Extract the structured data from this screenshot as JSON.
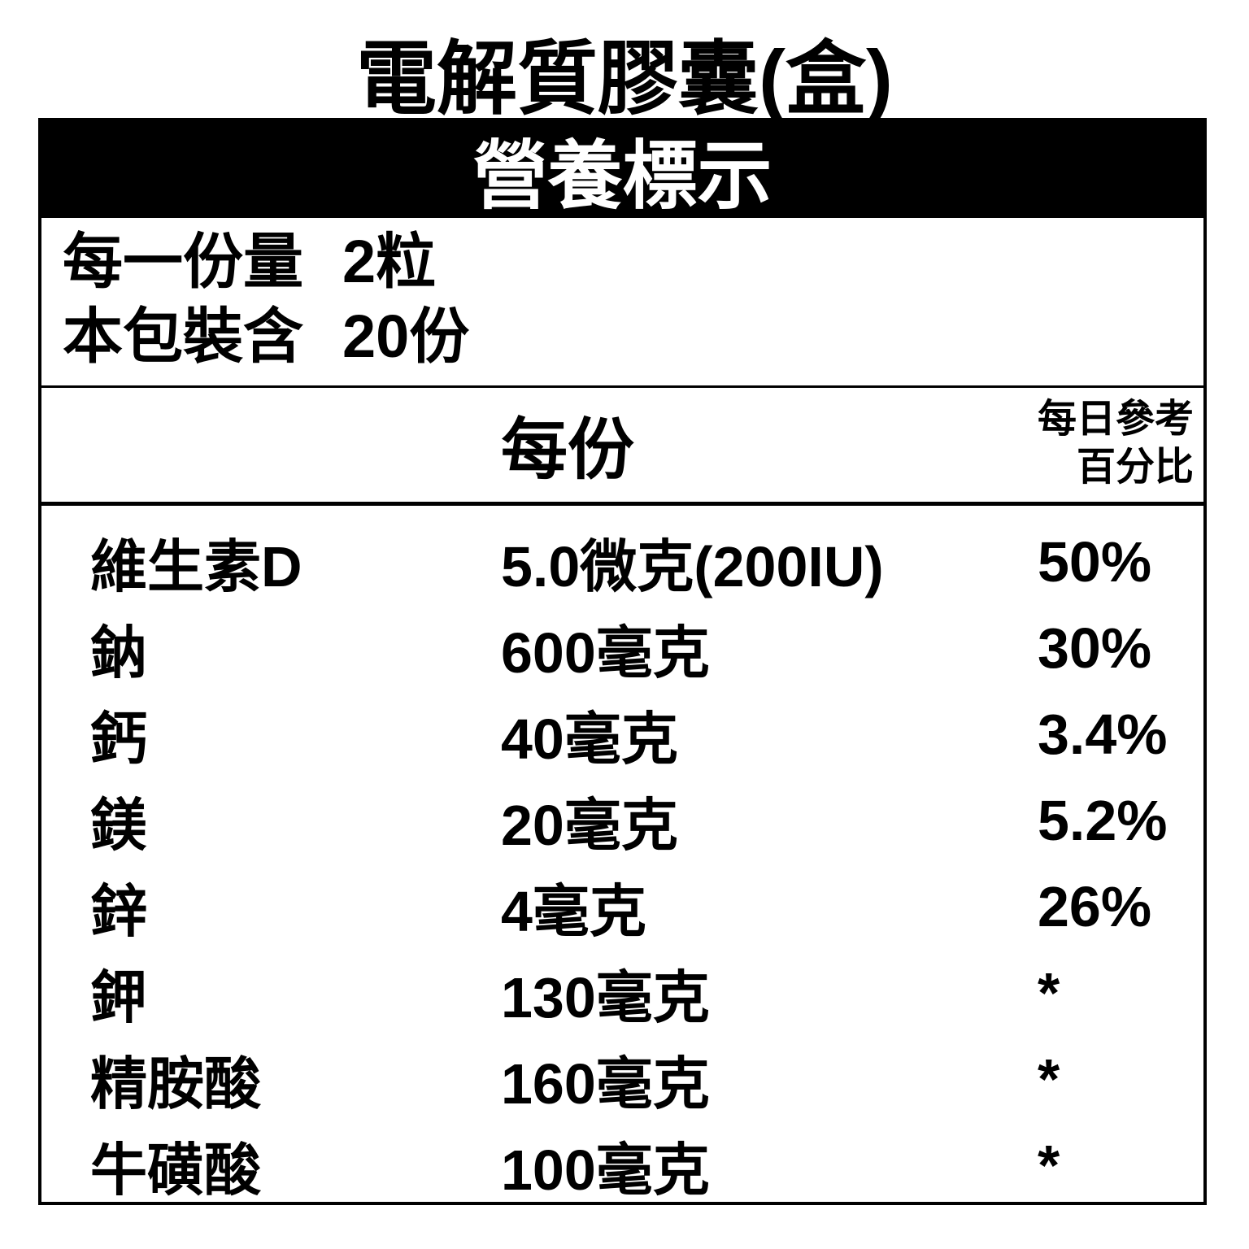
{
  "title": "電解質膠囊(盒)",
  "panel": {
    "header": "營養標示"
  },
  "serving": {
    "size_label": "每一份量",
    "size_value": "2粒",
    "count_label": "本包裝含",
    "count_value": "20份"
  },
  "columns": {
    "per_serving": "每份",
    "daily_ref_line1": "每日參考",
    "daily_ref_line2": "百分比"
  },
  "nutrients": [
    {
      "name": "維生素D",
      "amount": "5.0微克(200IU)",
      "daily_percent": "50%"
    },
    {
      "name": "鈉",
      "amount": "600毫克",
      "daily_percent": "30%"
    },
    {
      "name": "鈣",
      "amount": "40毫克",
      "daily_percent": "3.4%"
    },
    {
      "name": "鎂",
      "amount": "20毫克",
      "daily_percent": "5.2%"
    },
    {
      "name": "鋅",
      "amount": "4毫克",
      "daily_percent": "26%"
    },
    {
      "name": "鉀",
      "amount": "130毫克",
      "daily_percent": "*"
    },
    {
      "name": "精胺酸",
      "amount": "160毫克",
      "daily_percent": "*"
    },
    {
      "name": "牛磺酸",
      "amount": "100毫克",
      "daily_percent": "*"
    }
  ],
  "colors": {
    "background": "#ffffff",
    "text": "#000000",
    "panel_header_bg": "#000000",
    "panel_header_text": "#ffffff"
  }
}
